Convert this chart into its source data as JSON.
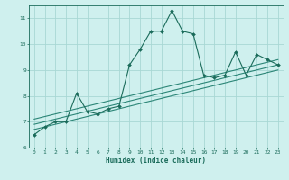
{
  "x_data": [
    0,
    1,
    2,
    3,
    4,
    5,
    6,
    7,
    8,
    9,
    10,
    11,
    12,
    13,
    14,
    15,
    16,
    17,
    18,
    19,
    20,
    21,
    22,
    23
  ],
  "y_data": [
    6.5,
    6.8,
    7.0,
    7.0,
    8.1,
    7.4,
    7.3,
    7.5,
    7.6,
    9.2,
    9.8,
    10.5,
    10.5,
    11.3,
    10.5,
    10.4,
    8.8,
    8.7,
    8.8,
    9.7,
    8.8,
    9.6,
    9.4,
    9.2
  ],
  "bg_color": "#cff0ee",
  "grid_color": "#a8d8d4",
  "line_color": "#1a6b5a",
  "marker_color": "#1a6b5a",
  "regression_color": "#1a7a6a",
  "xlabel": "Humidex (Indice chaleur)",
  "xlim": [
    -0.5,
    23.5
  ],
  "ylim": [
    6,
    11.5
  ],
  "yticks": [
    6,
    7,
    8,
    9,
    10,
    11
  ],
  "xticks": [
    0,
    1,
    2,
    3,
    4,
    5,
    6,
    7,
    8,
    9,
    10,
    11,
    12,
    13,
    14,
    15,
    16,
    17,
    18,
    19,
    20,
    21,
    22,
    23
  ],
  "reg_lines": [
    {
      "x0": 0.0,
      "y0": 6.7,
      "x1": 23.0,
      "y1": 9.0
    },
    {
      "x0": 0.0,
      "y0": 6.9,
      "x1": 23.0,
      "y1": 9.2
    },
    {
      "x0": 0.0,
      "y0": 7.1,
      "x1": 23.0,
      "y1": 9.4
    }
  ]
}
